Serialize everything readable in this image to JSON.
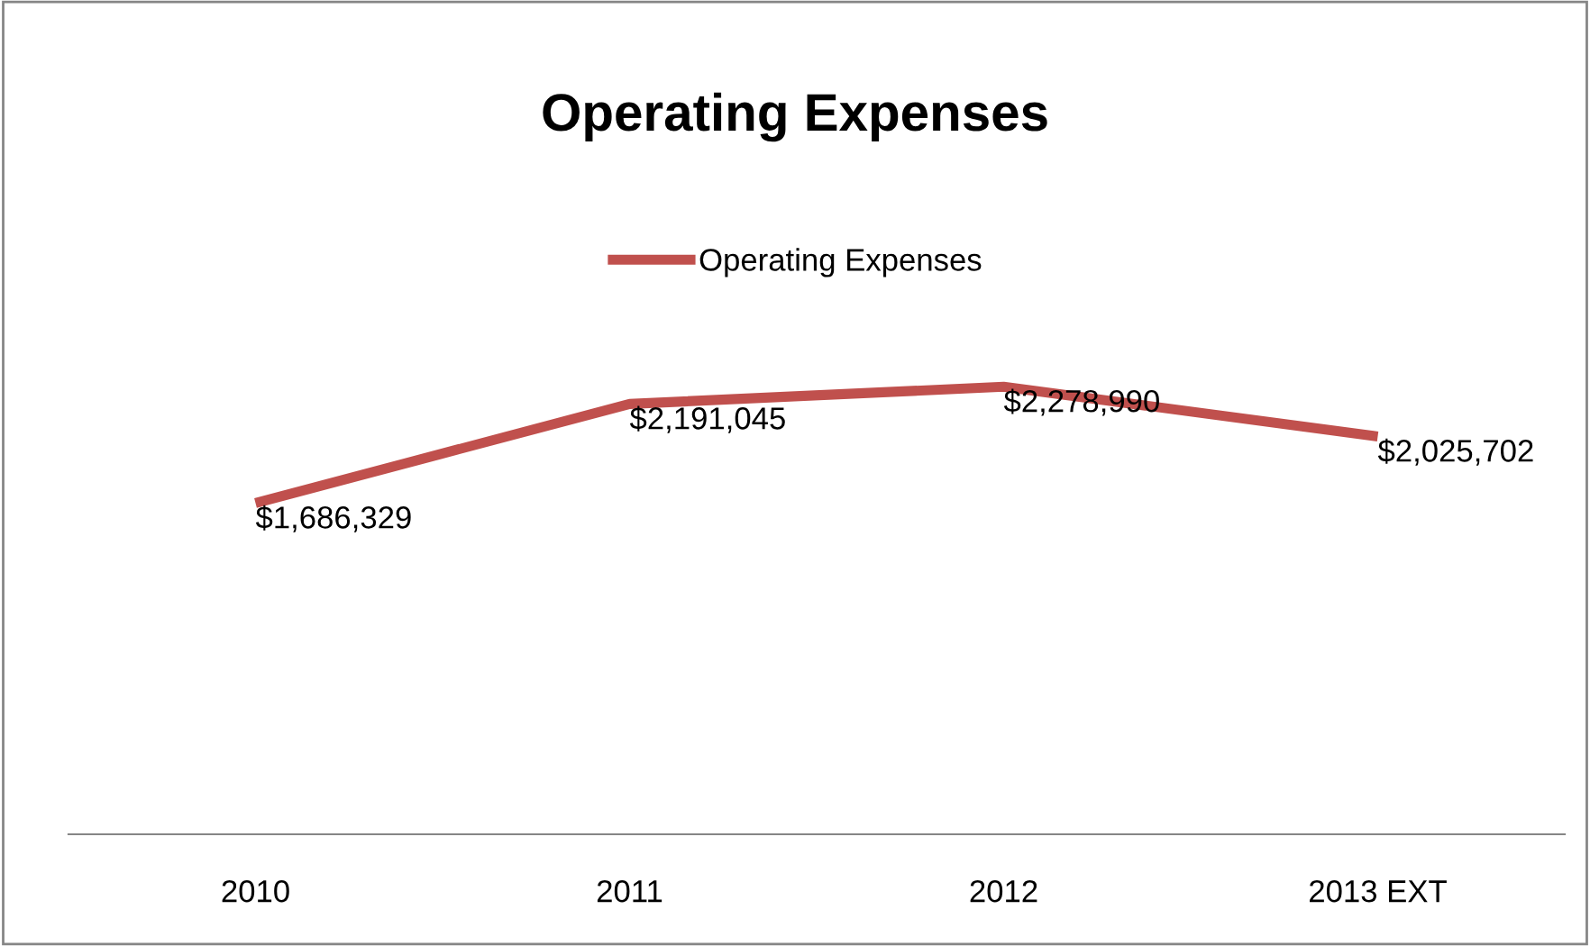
{
  "chart_data": {
    "type": "line",
    "title": "Operating Expenses",
    "categories": [
      "2010",
      "2011",
      "2012",
      "2013 EXT"
    ],
    "series": [
      {
        "name": "Operating Expenses",
        "color": "#c0504d",
        "values": [
          1686329,
          2191045,
          2278990,
          2025702
        ],
        "value_labels": [
          "$1,686,329",
          "$2,191,045",
          "$2,278,990",
          "$2,025,702"
        ]
      }
    ],
    "legend": "top",
    "grid": false,
    "marker": "none",
    "line_style": "solid"
  }
}
